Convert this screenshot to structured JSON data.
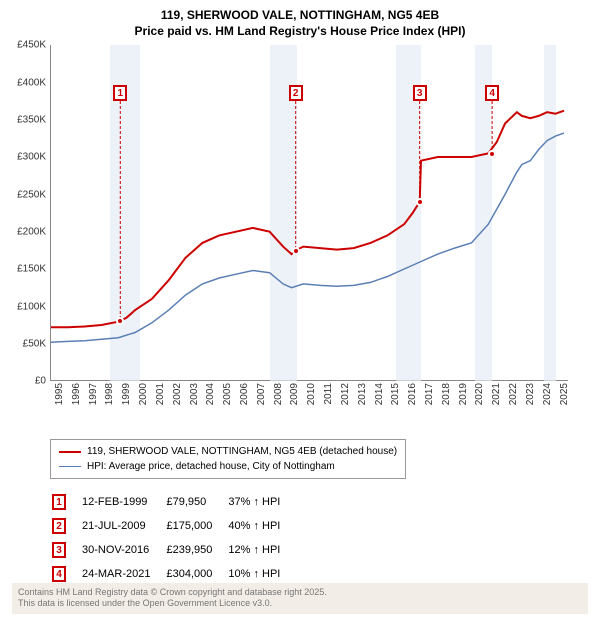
{
  "title": {
    "line1": "119, SHERWOOD VALE, NOTTINGHAM, NG5 4EB",
    "line2": "Price paid vs. HM Land Registry's House Price Index (HPI)"
  },
  "chart": {
    "type": "line",
    "xlim": [
      1995,
      2025.8
    ],
    "ylim": [
      0,
      450
    ],
    "ytick_step": 50,
    "ytick_prefix": "£",
    "ytick_suffix": "K",
    "years": [
      1995,
      1996,
      1997,
      1998,
      1999,
      2000,
      2001,
      2002,
      2003,
      2004,
      2005,
      2006,
      2007,
      2008,
      2009,
      2010,
      2011,
      2012,
      2013,
      2014,
      2015,
      2016,
      2017,
      2018,
      2019,
      2020,
      2021,
      2022,
      2023,
      2024,
      2025
    ],
    "shaded_ranges": [
      [
        1998.5,
        2000.3
      ],
      [
        2008.0,
        2009.6
      ],
      [
        2015.5,
        2017.0
      ],
      [
        2020.2,
        2021.2
      ],
      [
        2024.3,
        2025.0
      ]
    ],
    "series": [
      {
        "name": "property",
        "label": "119, SHERWOOD VALE, NOTTINGHAM, NG5 4EB (detached house)",
        "color": "#cc0000",
        "line_width": 2,
        "points": [
          [
            1995.0,
            72
          ],
          [
            1996.0,
            72
          ],
          [
            1997.0,
            73
          ],
          [
            1998.0,
            75
          ],
          [
            1999.1,
            80
          ],
          [
            1999.5,
            85
          ],
          [
            2000.0,
            95
          ],
          [
            2001.0,
            110
          ],
          [
            2002.0,
            135
          ],
          [
            2003.0,
            165
          ],
          [
            2004.0,
            185
          ],
          [
            2005.0,
            195
          ],
          [
            2006.0,
            200
          ],
          [
            2007.0,
            205
          ],
          [
            2008.0,
            200
          ],
          [
            2008.8,
            180
          ],
          [
            2009.3,
            170
          ],
          [
            2009.55,
            175
          ],
          [
            2010.0,
            180
          ],
          [
            2011.0,
            178
          ],
          [
            2012.0,
            176
          ],
          [
            2013.0,
            178
          ],
          [
            2014.0,
            185
          ],
          [
            2015.0,
            195
          ],
          [
            2016.0,
            210
          ],
          [
            2016.5,
            225
          ],
          [
            2016.92,
            240
          ],
          [
            2017.0,
            295
          ],
          [
            2018.0,
            300
          ],
          [
            2019.0,
            300
          ],
          [
            2020.0,
            300
          ],
          [
            2021.0,
            305
          ],
          [
            2021.5,
            320
          ],
          [
            2022.0,
            345
          ],
          [
            2022.7,
            360
          ],
          [
            2023.0,
            355
          ],
          [
            2023.5,
            352
          ],
          [
            2024.0,
            355
          ],
          [
            2024.5,
            360
          ],
          [
            2025.0,
            358
          ],
          [
            2025.5,
            362
          ]
        ]
      },
      {
        "name": "hpi",
        "label": "HPI: Average price, detached house, City of Nottingham",
        "color": "#5b7fb5",
        "line_width": 1.5,
        "points": [
          [
            1995.0,
            52
          ],
          [
            1996.0,
            53
          ],
          [
            1997.0,
            54
          ],
          [
            1998.0,
            56
          ],
          [
            1999.0,
            58
          ],
          [
            2000.0,
            65
          ],
          [
            2001.0,
            78
          ],
          [
            2002.0,
            95
          ],
          [
            2003.0,
            115
          ],
          [
            2004.0,
            130
          ],
          [
            2005.0,
            138
          ],
          [
            2006.0,
            143
          ],
          [
            2007.0,
            148
          ],
          [
            2008.0,
            145
          ],
          [
            2008.8,
            130
          ],
          [
            2009.3,
            125
          ],
          [
            2010.0,
            130
          ],
          [
            2011.0,
            128
          ],
          [
            2012.0,
            127
          ],
          [
            2013.0,
            128
          ],
          [
            2014.0,
            132
          ],
          [
            2015.0,
            140
          ],
          [
            2016.0,
            150
          ],
          [
            2017.0,
            160
          ],
          [
            2018.0,
            170
          ],
          [
            2019.0,
            178
          ],
          [
            2020.0,
            185
          ],
          [
            2021.0,
            210
          ],
          [
            2022.0,
            250
          ],
          [
            2022.7,
            280
          ],
          [
            2023.0,
            290
          ],
          [
            2023.5,
            295
          ],
          [
            2024.0,
            310
          ],
          [
            2024.5,
            322
          ],
          [
            2025.0,
            328
          ],
          [
            2025.5,
            332
          ]
        ]
      }
    ],
    "sale_markers": [
      {
        "n": 1,
        "x": 1999.12,
        "y": 80,
        "box_top": 40,
        "color": "#cc0000"
      },
      {
        "n": 2,
        "x": 2009.55,
        "y": 175,
        "box_top": 40,
        "color": "#cc0000"
      },
      {
        "n": 3,
        "x": 2016.92,
        "y": 240,
        "box_top": 40,
        "color": "#cc0000"
      },
      {
        "n": 4,
        "x": 2021.23,
        "y": 304,
        "box_top": 40,
        "color": "#cc0000"
      }
    ]
  },
  "sales_table": {
    "rows": [
      {
        "n": 1,
        "date": "12-FEB-1999",
        "price": "£79,950",
        "delta": "37% ↑ HPI",
        "color": "#cc0000"
      },
      {
        "n": 2,
        "date": "21-JUL-2009",
        "price": "£175,000",
        "delta": "40% ↑ HPI",
        "color": "#cc0000"
      },
      {
        "n": 3,
        "date": "30-NOV-2016",
        "price": "£239,950",
        "delta": "12% ↑ HPI",
        "color": "#cc0000"
      },
      {
        "n": 4,
        "date": "24-MAR-2021",
        "price": "£304,000",
        "delta": "10% ↑ HPI",
        "color": "#cc0000"
      }
    ]
  },
  "footer": {
    "line1": "Contains HM Land Registry data © Crown copyright and database right 2025.",
    "line2": "This data is licensed under the Open Government Licence v3.0."
  }
}
